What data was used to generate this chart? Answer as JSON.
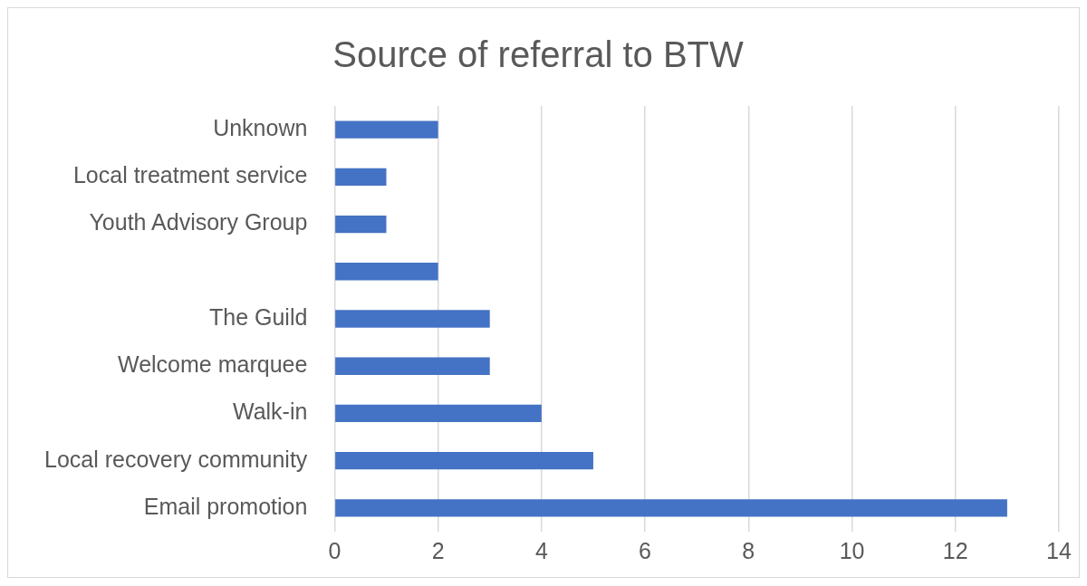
{
  "chart_data": {
    "type": "bar",
    "orientation": "horizontal",
    "title": "Source of referral to BTW",
    "categories": [
      "Unknown",
      "Local treatment service",
      "Youth Advisory Group",
      null,
      "The Guild",
      "Welcome marquee",
      "Walk-in",
      "Local recovery community",
      "Email promotion"
    ],
    "values": [
      2,
      1,
      1,
      2,
      3,
      3,
      4,
      5,
      13
    ],
    "color": "#4472c4",
    "xlim": [
      0,
      14
    ],
    "xticks": [
      0,
      2,
      4,
      6,
      8,
      10,
      12,
      14
    ],
    "grid": "x",
    "legend": false
  }
}
